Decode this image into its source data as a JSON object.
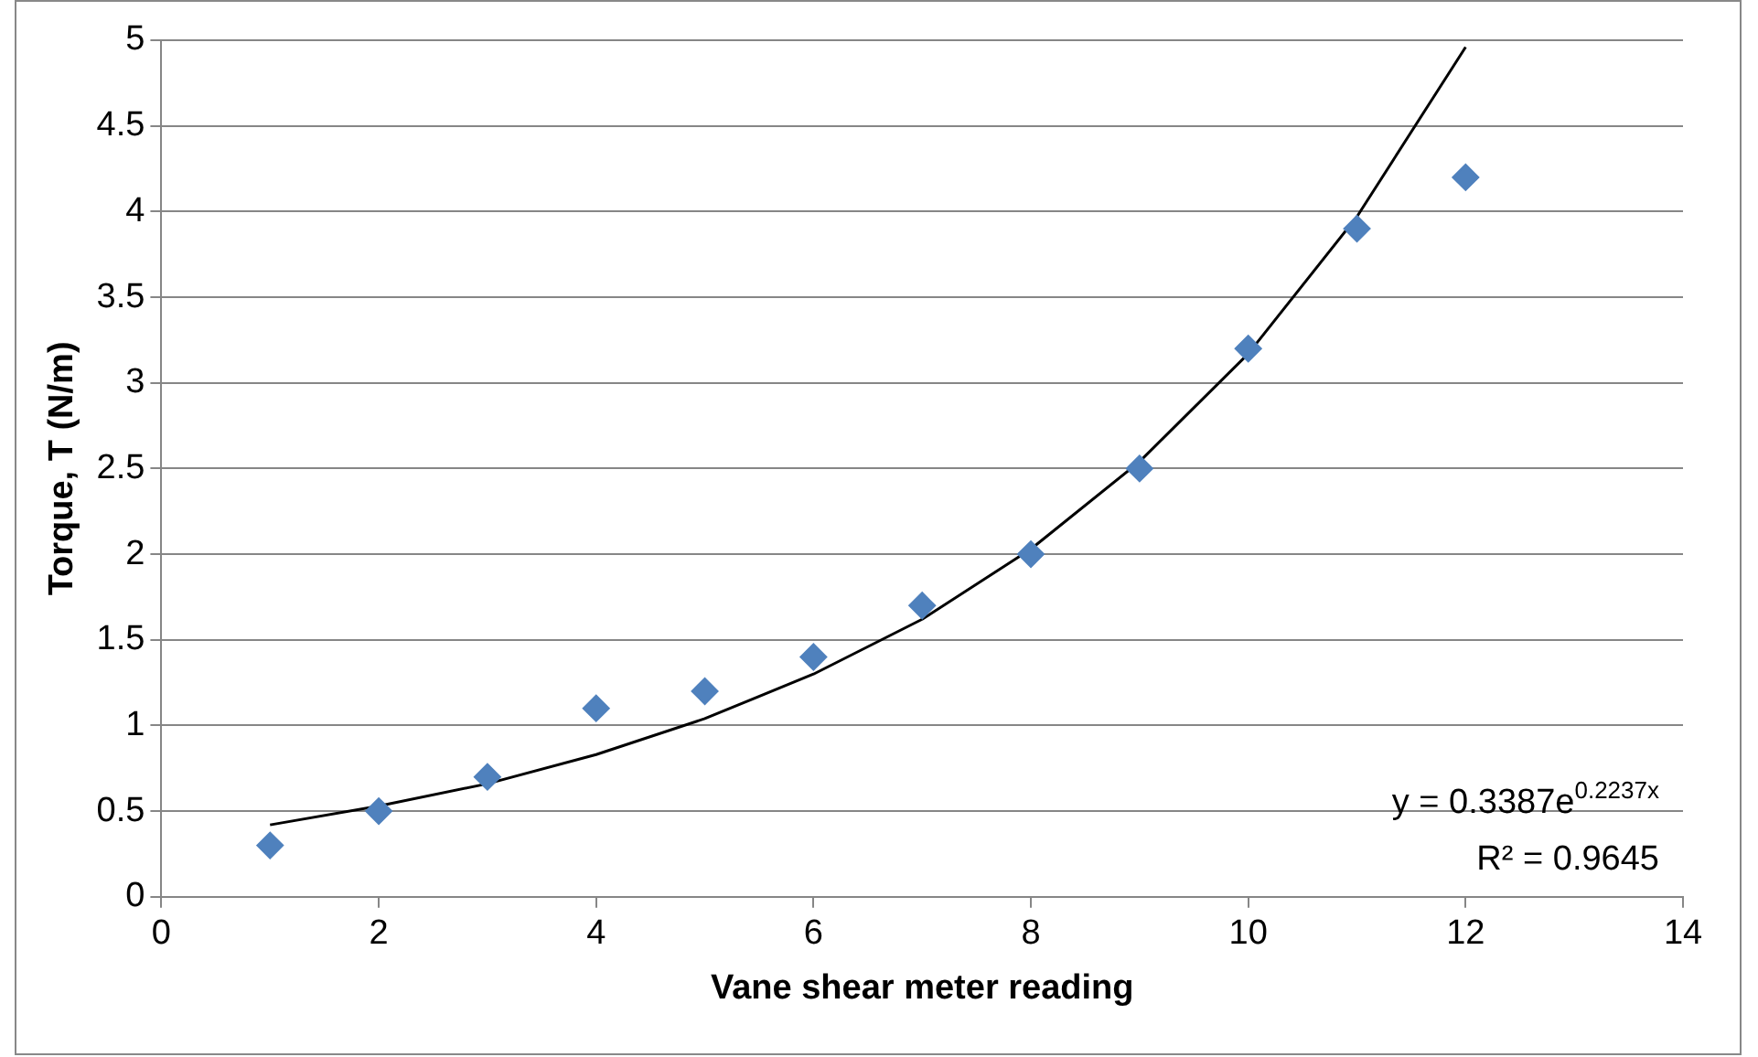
{
  "chart_data": {
    "type": "scatter",
    "xlabel": "Vane shear meter reading",
    "ylabel": "Torque, T (N/m)",
    "series": [
      {
        "color": "#4f81bd",
        "marker": "diamond",
        "x": [
          1,
          2,
          3,
          4,
          5,
          6,
          7,
          8,
          9,
          10,
          11,
          12
        ],
        "values": [
          0.3,
          0.5,
          0.7,
          1.1,
          1.2,
          1.4,
          1.7,
          2.0,
          2.5,
          3.2,
          3.9,
          4.2
        ]
      },
      {
        "type": "line",
        "color": "#000000",
        "marker": "none",
        "x": [
          1,
          2,
          3,
          4,
          5,
          6,
          7,
          8,
          9,
          10,
          11,
          12
        ],
        "values": [
          0.42,
          0.53,
          0.66,
          0.83,
          1.04,
          1.3,
          1.62,
          2.03,
          2.54,
          3.17,
          3.97,
          4.96
        ]
      }
    ],
    "xlim": [
      0,
      14
    ],
    "xticks": [
      0,
      2,
      4,
      6,
      8,
      10,
      12,
      14
    ],
    "ylim": [
      0,
      5
    ],
    "yticks": [
      0,
      0.5,
      1,
      1.5,
      2,
      2.5,
      3,
      3.5,
      4,
      4.5,
      5
    ],
    "grid": "y",
    "legend": false,
    "annotations": [
      "y = 0.3387e$^{0.2237x}$",
      "R² = 0.9645"
    ]
  }
}
